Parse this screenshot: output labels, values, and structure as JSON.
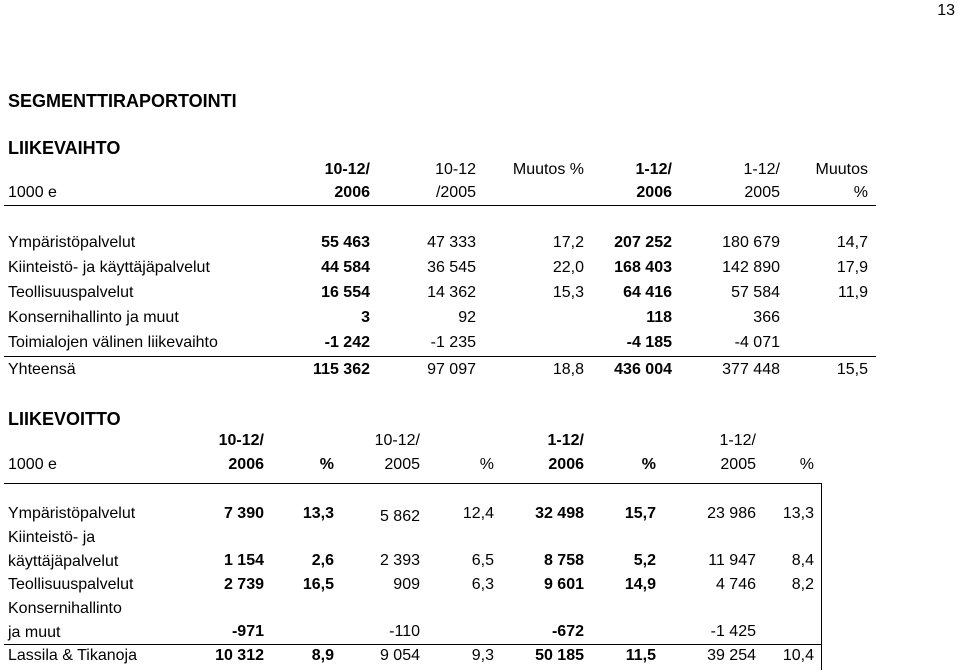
{
  "page_number": "13",
  "title": "SEGMENTTIRAPORTOINTI",
  "revenue": {
    "heading": "LIIKEVAIHTO",
    "header_unit": "1000 e",
    "col_headers": [
      {
        "line1": "10-12/",
        "line2": "2006",
        "bold": true
      },
      {
        "line1": "10-12",
        "line2": "/2005",
        "bold": false
      },
      {
        "line1": "Muutos %",
        "line2": "",
        "bold": false
      },
      {
        "line1": "1-12/",
        "line2": "2006",
        "bold": true
      },
      {
        "line1": "1-12/",
        "line2": "2005",
        "bold": false
      },
      {
        "line1": "Muutos",
        "line2": "%",
        "bold": false
      }
    ],
    "rows": [
      {
        "label": "Ympäristöpalvelut",
        "values": [
          "55 463",
          "47 333",
          "17,2",
          "207 252",
          "180 679",
          "14,7"
        ]
      },
      {
        "label": "Kiinteistö- ja käyttäjäpalvelut",
        "values": [
          "44 584",
          "36 545",
          "22,0",
          "168 403",
          "142 890",
          "17,9"
        ]
      },
      {
        "label": "Teollisuuspalvelut",
        "values": [
          "16 554",
          "14 362",
          "15,3",
          "64 416",
          "57 584",
          "11,9"
        ]
      },
      {
        "label": "Konsernihallinto ja muut",
        "values": [
          "3",
          "92",
          "",
          "118",
          "366",
          ""
        ]
      },
      {
        "label": "Toimialojen välinen liikevaihto",
        "values": [
          "-1 242",
          "-1 235",
          "",
          "-4 185",
          "-4 071",
          ""
        ]
      }
    ],
    "total": {
      "label": "Yhteensä",
      "values": [
        "115 362",
        "97 097",
        "18,8",
        "436 004",
        "377 448",
        "15,5"
      ]
    }
  },
  "ebit": {
    "heading": "LIIKEVOITTO",
    "header_unit": "1000 e",
    "col_headers": [
      {
        "line1": "10-12/",
        "line2": "2006",
        "bold": true
      },
      {
        "line1": "",
        "line2": "%",
        "bold": true
      },
      {
        "line1": "10-12/",
        "line2": "2005",
        "bold": false
      },
      {
        "line1": "",
        "line2": "%",
        "bold": false
      },
      {
        "line1": "1-12/",
        "line2": "2006",
        "bold": true
      },
      {
        "line1": "",
        "line2": "%",
        "bold": true
      },
      {
        "line1": "1-12/",
        "line2": "2005",
        "bold": false
      },
      {
        "line1": "",
        "line2": "%",
        "bold": false
      }
    ],
    "rows": [
      {
        "label1": "Ympäristöpalvelut",
        "label2": "",
        "values": [
          "7 390",
          "13,3",
          "5 862",
          "12,4",
          "32 498",
          "15,7",
          "23 986",
          "13,3"
        ]
      },
      {
        "label1": "Kiinteistö- ja",
        "label2": "käyttäjäpalvelut",
        "values": [
          "1 154",
          "2,6",
          "2 393",
          "6,5",
          "8 758",
          "5,2",
          "11 947",
          "8,4"
        ]
      },
      {
        "label1": "Teollisuuspalvelut",
        "label2": "",
        "values": [
          "2 739",
          "16,5",
          "909",
          "6,3",
          "9 601",
          "14,9",
          "4 746",
          "8,2"
        ]
      },
      {
        "label1": "Konsernihallinto",
        "label2": "ja muut",
        "values": [
          "-971",
          "",
          "-110",
          "",
          "-672",
          "",
          "-1 425",
          ""
        ]
      }
    ],
    "total": {
      "label": "Lassila & Tikanoja",
      "values": [
        "10 312",
        "8,9",
        "9 054",
        "9,3",
        "50 185",
        "11,5",
        "39 254",
        "10,4"
      ]
    }
  }
}
